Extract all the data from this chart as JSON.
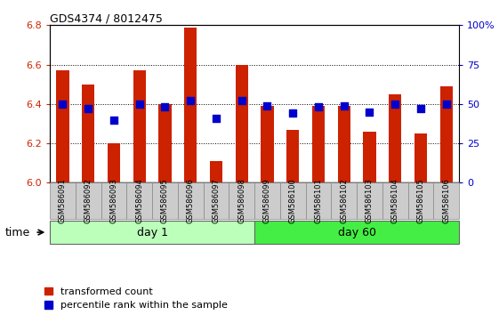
{
  "title": "GDS4374 / 8012475",
  "samples": [
    "GSM586091",
    "GSM586092",
    "GSM586093",
    "GSM586094",
    "GSM586095",
    "GSM586096",
    "GSM586097",
    "GSM586098",
    "GSM586099",
    "GSM586100",
    "GSM586101",
    "GSM586102",
    "GSM586103",
    "GSM586104",
    "GSM586105",
    "GSM586106"
  ],
  "bar_values": [
    6.57,
    6.5,
    6.2,
    6.57,
    6.4,
    6.79,
    6.11,
    6.6,
    6.39,
    6.27,
    6.39,
    6.39,
    6.26,
    6.45,
    6.25,
    6.49
  ],
  "dot_values_pct": [
    50,
    47,
    40,
    50,
    48,
    52,
    41,
    52,
    49,
    44,
    48,
    49,
    45,
    50,
    47,
    50
  ],
  "bar_bottom": 6.0,
  "ylim": [
    6.0,
    6.8
  ],
  "yticks_left": [
    6.0,
    6.2,
    6.4,
    6.6,
    6.8
  ],
  "yticks_right_pct": [
    0,
    25,
    50,
    75,
    100
  ],
  "bar_color": "#cc2200",
  "dot_color": "#0000cc",
  "day1_samples": 8,
  "day60_samples": 8,
  "day1_color": "#bbffbb",
  "day60_color": "#44ee44",
  "day1_label": "day 1",
  "day60_label": "day 60",
  "time_label": "time",
  "legend_bar_label": "transformed count",
  "legend_dot_label": "percentile rank within the sample",
  "bg_color": "#ffffff",
  "tick_color_left": "#cc2200",
  "tick_color_right": "#0000cc",
  "bar_width": 0.5,
  "dot_size": 28,
  "right_ytick_labels": [
    "0",
    "25",
    "50",
    "75",
    "100%"
  ]
}
